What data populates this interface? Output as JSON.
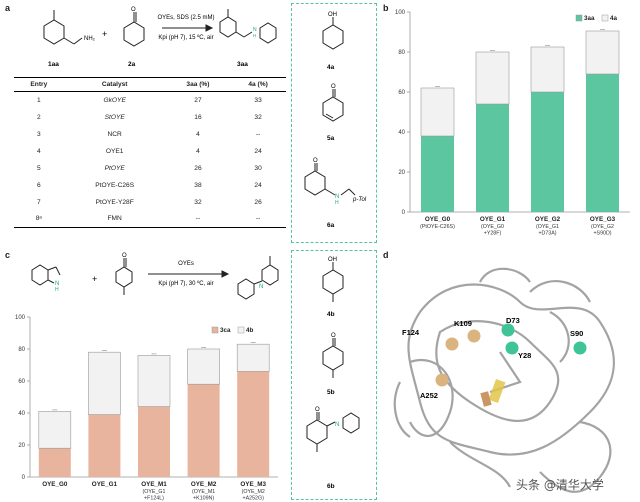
{
  "panel_labels": {
    "a": "a",
    "b": "b",
    "c": "c",
    "d": "d"
  },
  "scheme_a": {
    "conditions_top": "OYEs, SDS (2.5 mM)",
    "conditions_bottom": "Kpi (pH 7), 15 ºC, air",
    "labels": [
      "1aa",
      "2a",
      "3aa"
    ],
    "plus": "+"
  },
  "table": {
    "headers": [
      "Entry",
      "Catalyst",
      "3aa (%)",
      "4a (%)"
    ],
    "rows": [
      [
        "1",
        "GkOYE",
        "27",
        "33"
      ],
      [
        "2",
        "StOYE",
        "16",
        "32"
      ],
      [
        "3",
        "NCR",
        "4",
        "--"
      ],
      [
        "4",
        "OYE1",
        "4",
        "24"
      ],
      [
        "5",
        "PtOYE",
        "26",
        "30"
      ],
      [
        "6",
        "PtOYE-C26S",
        "38",
        "24"
      ],
      [
        "7",
        "PtOYE-Y28F",
        "32",
        "26"
      ],
      [
        "8ᵃ",
        "FMN",
        "--",
        "--"
      ]
    ]
  },
  "side_products_a": {
    "top": "4a",
    "mid": "5a",
    "bottom": "6a",
    "ptol": "p-Tol",
    "nh": "N",
    "h": "H",
    "o": "O",
    "oh": "OH"
  },
  "scheme_c": {
    "conditions_top": "OYEs",
    "conditions_bottom": "Kpi (pH 7), 30 ºC, air",
    "labels": [
      "1ba",
      "2b",
      "3ca"
    ],
    "plus": "+",
    "nh": "N",
    "h": "H"
  },
  "side_products_c": {
    "top": "4b",
    "mid": "5b",
    "bottom": "6b",
    "o": "O",
    "oh": "OH",
    "n": "N"
  },
  "structure_d": {
    "residues": [
      "F124",
      "K109",
      "D73",
      "S90",
      "Y28",
      "A252"
    ]
  },
  "watermark": "头条 @清华大学",
  "colors": {
    "green": "#5cc6a0",
    "peach": "#e9b49d",
    "light": "#f2f2f2",
    "border": "#58c49d"
  },
  "chart_data": [
    {
      "type": "bar",
      "stacked": true,
      "panel": "b",
      "categories": [
        "OYE_G0",
        "OYE_G1",
        "OYE_G2",
        "OYE_G3"
      ],
      "sublabels": [
        [
          "(PtOYE-C26S)"
        ],
        [
          "(OYE_G0",
          "+Y28F)"
        ],
        [
          "(OYE_G1",
          "+D73A)"
        ],
        [
          "(OYE_G2",
          "+S90D)"
        ]
      ],
      "series": [
        {
          "name": "3aa",
          "values": [
            38,
            54,
            60,
            69
          ],
          "color": "#5cc6a0"
        },
        {
          "name": "4a",
          "values": [
            24,
            26,
            22.5,
            21.5
          ],
          "color": "#f2f2f2"
        }
      ],
      "ylim": [
        0,
        100
      ],
      "yticks": [
        0,
        20,
        40,
        60,
        80,
        100
      ],
      "legend": "top-right",
      "grid": false
    },
    {
      "type": "bar",
      "stacked": true,
      "panel": "c",
      "categories": [
        "OYE_G0",
        "OYE_G1",
        "OYE_M1",
        "OYE_M2",
        "OYE_M3"
      ],
      "sublabels": [
        [],
        [],
        [
          "(OYE_G1",
          "+F124L)"
        ],
        [
          "(OYE_M1",
          "+K109N)"
        ],
        [
          "(OYE_M2",
          "+A252G)"
        ]
      ],
      "series": [
        {
          "name": "3ca",
          "values": [
            18,
            39,
            44,
            58,
            66
          ],
          "color": "#e9b49d"
        },
        {
          "name": "4b",
          "values": [
            23,
            39,
            32,
            22,
            17
          ],
          "color": "#f2f2f2"
        }
      ],
      "ylim": [
        0,
        100
      ],
      "yticks": [
        0,
        20,
        40,
        60,
        80,
        100
      ],
      "legend": "top-right",
      "grid": false
    }
  ]
}
